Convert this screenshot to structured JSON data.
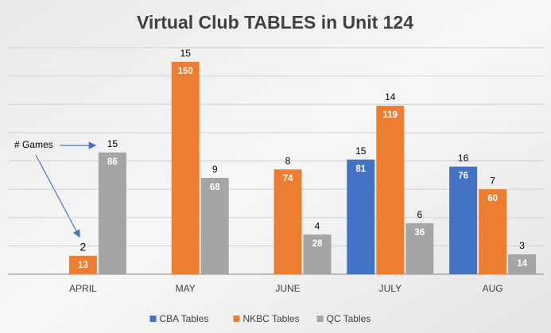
{
  "chart_data": {
    "type": "bar",
    "title": "Virtual Club TABLES in Unit 124",
    "categories": [
      "APRIL",
      "MAY",
      "JUNE",
      "JULY",
      "AUG"
    ],
    "series": [
      {
        "name": "CBA Tables",
        "color": "#4472c4",
        "values": [
          null,
          null,
          null,
          81,
          76
        ],
        "games": [
          null,
          null,
          null,
          15,
          16
        ]
      },
      {
        "name": "NKBC Tables",
        "color": "#ed7d31",
        "values": [
          13,
          150,
          74,
          119,
          60
        ],
        "games": [
          2,
          15,
          8,
          14,
          7
        ]
      },
      {
        "name": "QC Tables",
        "color": "#a5a5a5",
        "values": [
          86,
          68,
          28,
          36,
          14
        ],
        "games": [
          15,
          9,
          4,
          6,
          3
        ]
      }
    ],
    "annotation": "# Games",
    "ylim": [
      0,
      160
    ],
    "yticks": [
      0,
      20,
      40,
      60,
      80,
      100,
      120,
      140,
      160
    ],
    "grid": true,
    "legend": "bottom"
  }
}
